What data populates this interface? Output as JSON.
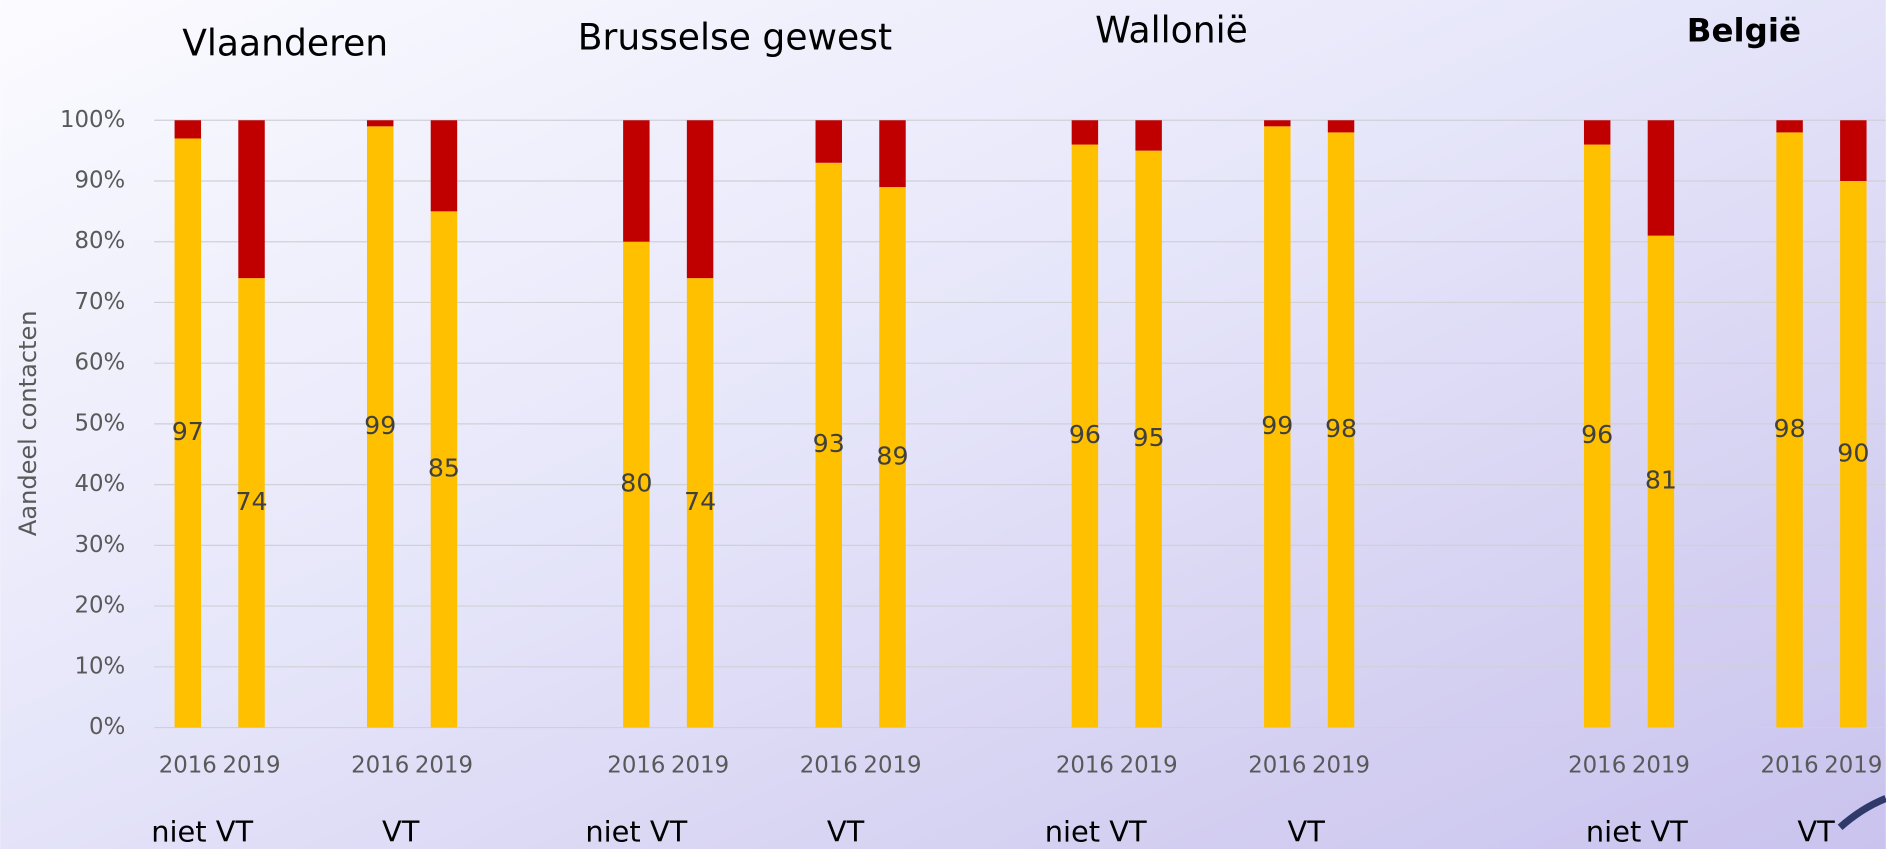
{
  "chart_data": {
    "type": "bar",
    "stacked": true,
    "ylabel": "Aandeel contacten",
    "regions": [
      "Vlaanderen",
      "Brusselse gewest",
      "Wallonië",
      "België"
    ],
    "groups": [
      "niet VT",
      "VT",
      "niet VT",
      "VT",
      "niet VT",
      "VT",
      "niet VT",
      "VT"
    ],
    "categories": [
      "2016",
      "2019",
      "2016",
      "2019",
      "2016",
      "2019",
      "2016",
      "2019",
      "2016",
      "2019",
      "2016",
      "2019",
      "2016",
      "2019",
      "2016",
      "2019"
    ],
    "series": [
      {
        "color": "#ffc000",
        "values": [
          97,
          74,
          99,
          85,
          80,
          74,
          93,
          89,
          96,
          95,
          99,
          98,
          96,
          81,
          98,
          90
        ],
        "show_labels": true
      },
      {
        "color": "#c00000",
        "values": [
          3,
          26,
          1,
          15,
          20,
          26,
          7,
          11,
          4,
          5,
          1,
          2,
          4,
          19,
          2,
          10
        ],
        "show_labels": false
      }
    ],
    "ylim": [
      0,
      100
    ],
    "yticks": [
      {
        "value": 0,
        "label": "0%"
      },
      {
        "value": 10,
        "label": "10%"
      },
      {
        "value": 20,
        "label": "20%"
      },
      {
        "value": 30,
        "label": "30%"
      },
      {
        "value": 40,
        "label": "40%"
      },
      {
        "value": 50,
        "label": "50%"
      },
      {
        "value": 60,
        "label": "60%"
      },
      {
        "value": 70,
        "label": "70%"
      },
      {
        "value": 80,
        "label": "80%"
      },
      {
        "value": 90,
        "label": "90%"
      },
      {
        "value": 100,
        "label": "100%"
      }
    ],
    "grid": true
  }
}
